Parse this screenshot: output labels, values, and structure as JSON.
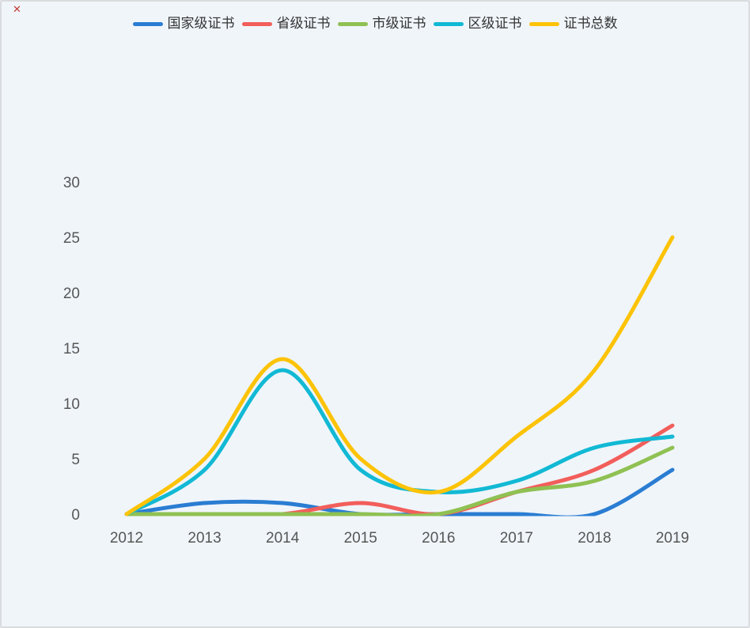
{
  "page": {
    "background": "#f0f5fa",
    "border_color": "#d9dbde",
    "broken_mark": "✕"
  },
  "chart_data": {
    "type": "line",
    "title": "",
    "xlabel": "",
    "ylabel": "",
    "smooth": true,
    "grid": false,
    "legend_position": "top",
    "categories": [
      "2012",
      "2013",
      "2014",
      "2015",
      "2016",
      "2017",
      "2018",
      "2019"
    ],
    "yticks": [
      0,
      5,
      10,
      15,
      20,
      25,
      30
    ],
    "ylim": [
      0,
      30
    ],
    "series": [
      {
        "name": "国家级证书",
        "color": "#2a7dd2",
        "values": [
          0,
          1,
          1,
          0,
          0,
          0,
          0,
          4
        ]
      },
      {
        "name": "省级证书",
        "color": "#f25e5b",
        "values": [
          0,
          0,
          0,
          1,
          0,
          2,
          4,
          8
        ]
      },
      {
        "name": "市级证书",
        "color": "#8fc153",
        "values": [
          0,
          0,
          0,
          0,
          0,
          2,
          3,
          6
        ]
      },
      {
        "name": "区级证书",
        "color": "#12b9d4",
        "values": [
          0,
          4,
          13,
          4,
          2,
          3,
          6,
          7
        ]
      },
      {
        "name": "证书总数",
        "color": "#fcc307",
        "values": [
          0,
          5,
          14,
          5,
          2,
          7,
          13,
          25
        ]
      }
    ]
  }
}
